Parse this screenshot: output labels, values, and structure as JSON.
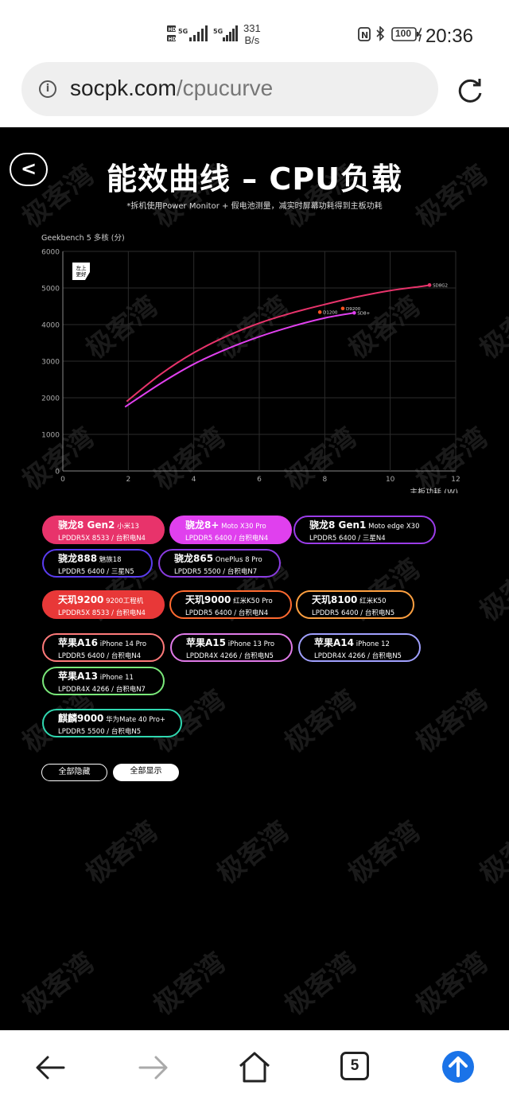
{
  "status_bar": {
    "time": "20:36",
    "net_speed_value": "331",
    "net_speed_unit": "B/s",
    "battery": "100",
    "hd1": "HD",
    "hd2": "HD",
    "sig1": "5G",
    "sig2": "5G"
  },
  "browser": {
    "url_domain": "socpk.com",
    "url_path": "/cpucurve",
    "tab_count": "5"
  },
  "page": {
    "back_label": "<",
    "title": "能效曲线 – CPU负载",
    "subtitle": "*拆机使用Power Monitor + 假电池测量，减实时屏幕功耗得到主板功耗",
    "hide_all": "全部隐藏",
    "show_all": "全部显示",
    "watermark": "极客湾"
  },
  "chart_data": {
    "type": "line",
    "ylabel": "Geekbench 5 多核 (分)",
    "xlabel": "主板功耗 (W)",
    "xlim": [
      0,
      12
    ],
    "ylim": [
      0,
      6000
    ],
    "x_ticks": [
      "0",
      "2",
      "4",
      "6",
      "8",
      "10",
      "12"
    ],
    "y_ticks": [
      "0",
      "1000",
      "2000",
      "3000",
      "4000",
      "5000",
      "6000"
    ],
    "badge_line1": "左上",
    "badge_line2": "更好",
    "grid": true,
    "series": [
      {
        "name": "SD8G2",
        "color": "#e8336b",
        "end_label": "",
        "points": [
          [
            1.95,
            1900
          ],
          [
            3,
            2650
          ],
          [
            4,
            3230
          ],
          [
            5,
            3680
          ],
          [
            6,
            4040
          ],
          [
            7,
            4320
          ],
          [
            8,
            4550
          ],
          [
            9,
            4760
          ],
          [
            10,
            4930
          ],
          [
            11,
            5050
          ],
          [
            11.2,
            5080
          ]
        ]
      },
      {
        "name": "SD8+",
        "color": "#e040ee",
        "end_label": "SD8+",
        "points": [
          [
            1.9,
            1750
          ],
          [
            3,
            2400
          ],
          [
            4,
            2920
          ],
          [
            5,
            3330
          ],
          [
            6,
            3670
          ],
          [
            7,
            3950
          ],
          [
            8,
            4180
          ],
          [
            8.9,
            4320
          ]
        ]
      }
    ],
    "point_labels": [
      {
        "text": "SD8G2",
        "x": 11.2,
        "y": 5080,
        "color": "#e8336b"
      },
      {
        "text": "D9200",
        "x": 8.55,
        "y": 4440,
        "color": "#ff5522"
      },
      {
        "text": "D1200",
        "x": 7.85,
        "y": 4340,
        "color": "#ff5522"
      }
    ]
  },
  "chips": [
    {
      "name": "骁龙8 Gen2",
      "device": "小米13",
      "spec": "LPDDR5X 8533 / 台积电N4",
      "fill": "#e8336b",
      "border": "#e8336b"
    },
    {
      "name": "骁龙8+",
      "device": "Moto X30 Pro",
      "spec": "LPDDR5 6400 / 台积电N4",
      "fill": "#e040ee",
      "border": "#e040ee"
    },
    {
      "name": "骁龙8 Gen1",
      "device": "Moto edge X30",
      "spec": "LPDDR5 6400 / 三星N4",
      "fill": "#000000",
      "border": "#9a3ce8"
    },
    {
      "name": "骁龙888",
      "device": "魅族18",
      "spec": "LPDDR5 6400 / 三星N5",
      "fill": "#000000",
      "border": "#5a3cf0"
    },
    {
      "name": "骁龙865",
      "device": "OnePlus 8 Pro",
      "spec": "LPDDR5 5500 / 台积电N7",
      "fill": "#000000",
      "border": "#8a3ce0"
    },
    {
      "name": "天玑9200",
      "device": "9200工程机",
      "spec": "LPDDR5X 8533 / 台积电N4",
      "fill": "#e83838",
      "border": "#e83838"
    },
    {
      "name": "天玑9000",
      "device": "红米K50 Pro",
      "spec": "LPDDR5 6400 / 台积电N4",
      "fill": "#000000",
      "border": "#ff6a30"
    },
    {
      "name": "天玑8100",
      "device": "红米K50",
      "spec": "LPDDR5 6400 / 台积电N5",
      "fill": "#000000",
      "border": "#ffa040"
    },
    {
      "name": "苹果A16",
      "device": "iPhone 14 Pro",
      "spec": "LPDDR5 6400 / 台积电N4",
      "fill": "#000000",
      "border": "#ff7a7a"
    },
    {
      "name": "苹果A15",
      "device": "iPhone 13 Pro",
      "spec": "LPDDR4X 4266 / 台积电N5",
      "fill": "#000000",
      "border": "#e07ae8"
    },
    {
      "name": "苹果A14",
      "device": "iPhone 12",
      "spec": "LPDDR4X 4266 / 台积电N5",
      "fill": "#000000",
      "border": "#a0a0ff"
    },
    {
      "name": "苹果A13",
      "device": "iPhone 11",
      "spec": "LPDDR4X 4266 / 台积电N7",
      "fill": "#000000",
      "border": "#7ae87a"
    },
    {
      "name": "麒麟9000",
      "device": "华为Mate 40 Pro+",
      "spec": "LPDDR5 5500 / 台积电N5",
      "fill": "#000000",
      "border": "#30d8b0"
    }
  ]
}
